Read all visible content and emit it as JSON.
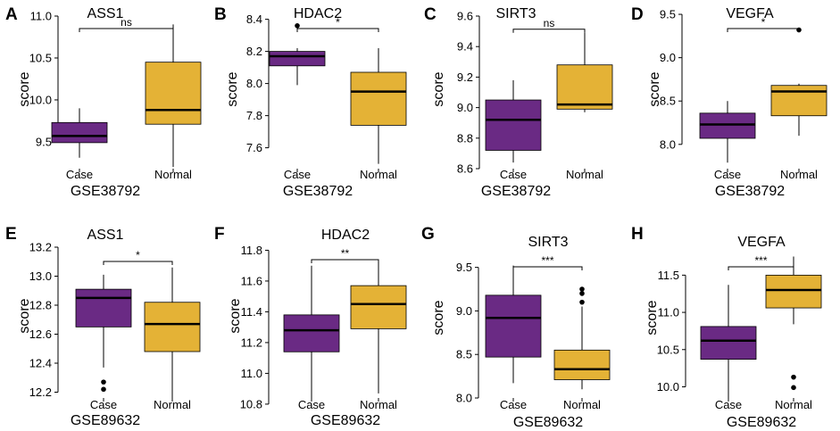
{
  "colors": {
    "case": "#6a2a84",
    "normal": "#e4b236",
    "axis": "#000000"
  },
  "chart_data": [
    {
      "letter": "A",
      "title": "ASS1",
      "dataset": "GSE38792",
      "ylabel": "score",
      "sig": "ns",
      "type": "box",
      "categories": [
        "Case",
        "Normal"
      ],
      "ylim": [
        9.18,
        11.0
      ],
      "yticks": [
        9.5,
        10.0,
        10.5,
        11.0
      ],
      "ytick_labels": [
        "9.5",
        "10.0",
        "10.5",
        "11.0"
      ],
      "boxes": [
        {
          "q1": 9.49,
          "median": 9.57,
          "q3": 9.73,
          "whisker_low": 9.31,
          "whisker_high": 9.9,
          "outliers": []
        },
        {
          "q1": 9.71,
          "median": 9.88,
          "q3": 10.45,
          "whisker_low": 9.2,
          "whisker_high": 10.9,
          "outliers": []
        }
      ]
    },
    {
      "letter": "B",
      "title": "HDAC2",
      "dataset": "GSE38792",
      "ylabel": "score",
      "sig": "*",
      "type": "box",
      "categories": [
        "Case",
        "Normal"
      ],
      "ylim": [
        7.47,
        8.42
      ],
      "yticks": [
        7.6,
        7.8,
        8.0,
        8.2,
        8.4
      ],
      "ytick_labels": [
        "7.6",
        "7.8",
        "8.0",
        "8.2",
        "8.4"
      ],
      "boxes": [
        {
          "q1": 8.11,
          "median": 8.17,
          "q3": 8.2,
          "whisker_low": 7.99,
          "whisker_high": 8.22,
          "outliers": [
            8.36
          ]
        },
        {
          "q1": 7.74,
          "median": 7.95,
          "q3": 8.07,
          "whisker_low": 7.5,
          "whisker_high": 8.22,
          "outliers": []
        }
      ]
    },
    {
      "letter": "C",
      "title": "SIRT3",
      "dataset": "GSE38792",
      "ylabel": "score",
      "sig": "ns",
      "type": "box",
      "categories": [
        "Case",
        "Normal"
      ],
      "ylim": [
        8.6,
        9.6
      ],
      "yticks": [
        8.6,
        8.8,
        9.0,
        9.2,
        9.4,
        9.6
      ],
      "ytick_labels": [
        "8.6",
        "8.8",
        "9.0",
        "9.2",
        "9.4",
        "9.6"
      ],
      "boxes": [
        {
          "q1": 8.72,
          "median": 8.92,
          "q3": 9.05,
          "whisker_low": 8.64,
          "whisker_high": 9.18,
          "outliers": []
        },
        {
          "q1": 8.99,
          "median": 9.02,
          "q3": 9.28,
          "whisker_low": 8.97,
          "whisker_high": 9.49,
          "outliers": []
        }
      ]
    },
    {
      "letter": "D",
      "title": "VEGFA",
      "dataset": "GSE38792",
      "ylabel": "score",
      "sig": "*",
      "type": "box",
      "categories": [
        "Case",
        "Normal"
      ],
      "ylim": [
        7.72,
        9.48
      ],
      "yticks": [
        8.0,
        8.5,
        9.0,
        9.5
      ],
      "ytick_labels": [
        "8.0",
        "8.5",
        "9.0",
        "9.5"
      ],
      "boxes": [
        {
          "q1": 8.07,
          "median": 8.23,
          "q3": 8.36,
          "whisker_low": 7.79,
          "whisker_high": 8.5,
          "outliers": []
        },
        {
          "q1": 8.33,
          "median": 8.61,
          "q3": 8.68,
          "whisker_low": 8.1,
          "whisker_high": 8.7,
          "outliers": [
            9.32
          ]
        }
      ]
    },
    {
      "letter": "E",
      "title": "ASS1",
      "dataset": "GSE89632",
      "ylabel": "score",
      "sig": "*",
      "type": "box",
      "categories": [
        "Case",
        "Normal"
      ],
      "ylim": [
        12.16,
        13.2
      ],
      "yticks": [
        12.2,
        12.4,
        12.6,
        12.8,
        13.0,
        13.2
      ],
      "ytick_labels": [
        "12.2",
        "12.4",
        "12.6",
        "12.8",
        "13.0",
        "13.2"
      ],
      "boxes": [
        {
          "q1": 12.65,
          "median": 12.85,
          "q3": 12.91,
          "whisker_low": 12.37,
          "whisker_high": 13.01,
          "outliers": [
            12.27,
            12.22
          ]
        },
        {
          "q1": 12.48,
          "median": 12.67,
          "q3": 12.82,
          "whisker_low": 12.16,
          "whisker_high": 13.06,
          "outliers": []
        }
      ]
    },
    {
      "letter": "F",
      "title": "HDAC2",
      "dataset": "GSE89632",
      "ylabel": "score",
      "sig": "**",
      "type": "box",
      "categories": [
        "Case",
        "Normal"
      ],
      "ylim": [
        10.84,
        11.82
      ],
      "yticks": [
        10.8,
        11.0,
        11.2,
        11.4,
        11.6,
        11.8
      ],
      "ytick_labels": [
        "10.8",
        "11.0",
        "11.2",
        "11.4",
        "11.6",
        "11.8"
      ],
      "boxes": [
        {
          "q1": 11.14,
          "median": 11.28,
          "q3": 11.38,
          "whisker_low": 10.84,
          "whisker_high": 11.7,
          "outliers": []
        },
        {
          "q1": 11.29,
          "median": 11.45,
          "q3": 11.57,
          "whisker_low": 10.87,
          "whisker_high": 11.73,
          "outliers": []
        }
      ]
    },
    {
      "letter": "G",
      "title": "SIRT3",
      "dataset": "GSE89632",
      "ylabel": "score",
      "sig": "***",
      "type": "box",
      "categories": [
        "Case",
        "Normal"
      ],
      "ylim": [
        8.0,
        9.65
      ],
      "yticks": [
        8.0,
        8.5,
        9.0,
        9.5
      ],
      "ytick_labels": [
        "8.0",
        "8.5",
        "9.0",
        "9.5"
      ],
      "boxes": [
        {
          "q1": 8.47,
          "median": 8.92,
          "q3": 9.18,
          "whisker_low": 8.17,
          "whisker_high": 9.52,
          "outliers": []
        },
        {
          "q1": 8.21,
          "median": 8.33,
          "q3": 8.55,
          "whisker_low": 8.1,
          "whisker_high": 9.05,
          "outliers": [
            9.25,
            9.2,
            9.1
          ]
        }
      ]
    },
    {
      "letter": "H",
      "title": "VEGFA",
      "dataset": "GSE89632",
      "ylabel": "score",
      "sig": "***",
      "type": "box",
      "categories": [
        "Case",
        "Normal"
      ],
      "ylim": [
        9.85,
        11.78
      ],
      "yticks": [
        10.0,
        10.5,
        11.0,
        11.5
      ],
      "ytick_labels": [
        "10.0",
        "10.5",
        "11.0",
        "11.5"
      ],
      "boxes": [
        {
          "q1": 10.37,
          "median": 10.62,
          "q3": 10.81,
          "whisker_low": 9.85,
          "whisker_high": 11.37,
          "outliers": []
        },
        {
          "q1": 11.06,
          "median": 11.3,
          "q3": 11.5,
          "whisker_low": 10.84,
          "whisker_high": 11.75,
          "outliers": [
            10.13,
            9.99
          ]
        }
      ]
    }
  ]
}
